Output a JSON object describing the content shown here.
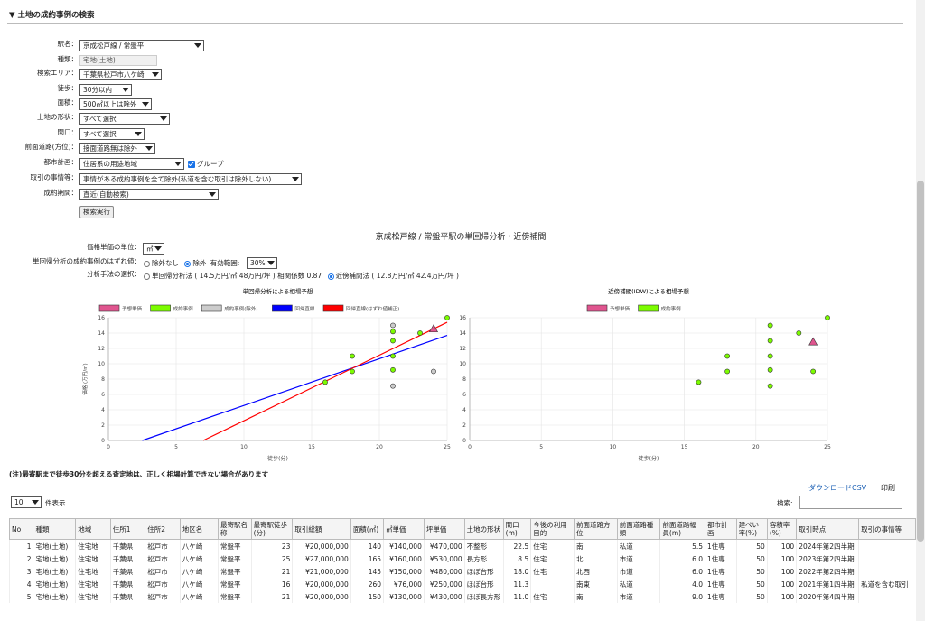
{
  "section_title": "▼ 土地の成約事例の検索",
  "form": {
    "station": {
      "label": "駅名：",
      "value": "京成松戸線 / 常盤平"
    },
    "kind": {
      "label": "種類：",
      "value": "宅地(土地)"
    },
    "area_search": {
      "label": "検索エリア：",
      "value": "千葉県松戸市八ケ崎"
    },
    "walk": {
      "label": "徒歩：",
      "value": "30分以内"
    },
    "size": {
      "label": "面積：",
      "value": "500㎡以上は除外"
    },
    "shape": {
      "label": "土地の形状：",
      "value": "すべて選択"
    },
    "frontage": {
      "label": "間口：",
      "value": "すべて選択"
    },
    "front_road": {
      "label": "前面道路(方位)：",
      "value": "接面道路無は除外"
    },
    "city_plan": {
      "label": "都市計画：",
      "value": "住居系の用途地域",
      "group_label": "グループ"
    },
    "circumstances": {
      "label": "取引の事情等：",
      "value": "事情がある成約事例を全て除外(私道を含む取引は除外しない)"
    },
    "period": {
      "label": "成約期間：",
      "value": "直近(自動検索)"
    },
    "search_button": "検索実行"
  },
  "analysis": {
    "title": "京成松戸線 / 常盤平駅の単回帰分析・近傍補間",
    "unit": {
      "label": "価格単価の単位：",
      "value": "㎡"
    },
    "outlier": {
      "label": "単回帰分析の成約事例のはずれ値：",
      "opt1": "除外なし",
      "opt2": "除外",
      "range_label": "有効範囲:",
      "range_value": "30%"
    },
    "method": {
      "label": "分析手法の選択：",
      "opt1": "単回帰分析法 ( 14.5万円/㎡ 48万円/坪 ) 相関係数 0.87",
      "opt2": "近傍補間法 ( 12.8万円/㎡ 42.4万円/坪 )"
    }
  },
  "chart_data": [
    {
      "type": "scatter",
      "title": "単回帰分析による相場予想",
      "xlabel": "徒歩(分)",
      "ylabel": "価格 (万円/㎡)",
      "xlim": [
        0,
        25
      ],
      "ylim": [
        0,
        16
      ],
      "xticks": [
        "0",
        "5",
        "10",
        "15",
        "20",
        "25"
      ],
      "yticks": [
        "0",
        "2",
        "4",
        "6",
        "8",
        "10",
        "12",
        "14",
        "16"
      ],
      "legend": [
        "予想単価",
        "成約事例",
        "成約事例(除外)",
        "回帰直線",
        "回帰直線(はずれ値補正)"
      ],
      "colors": {
        "predicted": "#e0558f",
        "included": "#7cfc00",
        "excluded": "#cccccc",
        "line_blue": "#0000ff",
        "line_red": "#ff0000"
      },
      "series": [
        {
          "name": "成約事例",
          "points": [
            [
              16,
              7.6
            ],
            [
              18,
              9
            ],
            [
              18,
              11
            ],
            [
              21,
              9.2
            ],
            [
              21,
              11
            ],
            [
              21,
              13
            ],
            [
              21,
              14.2
            ],
            [
              23,
              14
            ],
            [
              25,
              16
            ]
          ]
        },
        {
          "name": "成約事例(除外)",
          "points": [
            [
              21,
              15
            ],
            [
              21,
              7.1
            ],
            [
              24,
              9
            ]
          ]
        },
        {
          "name": "予想単価",
          "points": [
            [
              24,
              14.5
            ]
          ]
        },
        {
          "name": "回帰直線",
          "line": [
            [
              2.5,
              0
            ],
            [
              25,
              13.7
            ]
          ]
        },
        {
          "name": "回帰直線(はずれ値補正)",
          "line": [
            [
              7,
              0
            ],
            [
              25,
              15.4
            ]
          ]
        }
      ]
    },
    {
      "type": "scatter",
      "title": "近傍補間(IDW)による相場予想",
      "xlabel": "徒歩(分)",
      "ylabel": "価格 (万円/㎡)",
      "xlim": [
        0,
        25
      ],
      "ylim": [
        0,
        16
      ],
      "xticks": [
        "0",
        "5",
        "10",
        "15",
        "20",
        "25"
      ],
      "yticks": [
        "0",
        "2",
        "4",
        "6",
        "8",
        "10",
        "12",
        "14",
        "16"
      ],
      "legend": [
        "予想単価",
        "成約事例"
      ],
      "colors": {
        "predicted": "#e0558f",
        "included": "#7cfc00"
      },
      "series": [
        {
          "name": "成約事例",
          "points": [
            [
              16,
              7.6
            ],
            [
              18,
              9
            ],
            [
              18,
              11
            ],
            [
              21,
              7.1
            ],
            [
              21,
              9.2
            ],
            [
              21,
              11
            ],
            [
              21,
              13
            ],
            [
              21,
              15
            ],
            [
              23,
              14
            ],
            [
              24,
              9
            ],
            [
              25,
              16
            ]
          ]
        },
        {
          "name": "予想単価",
          "points": [
            [
              24,
              12.8
            ]
          ]
        }
      ]
    }
  ],
  "note": "(注)最寄駅まで徒歩30分を超える査定地は、正しく相場計算できない場合があります",
  "download_csv": "ダウンロードCSV",
  "print": "印刷",
  "table": {
    "page_size": "10",
    "page_size_suffix": "件表示",
    "search_label": "検索:",
    "headers": [
      "No",
      "種類",
      "地域",
      "住所1",
      "住所2",
      "地区名",
      "最寄駅名称",
      "最寄駅徒歩(分)",
      "取引総額",
      "面積(㎡)",
      "㎡単価",
      "坪単価",
      "土地の形状",
      "間口(m)",
      "今後の利用目的",
      "前面道路方位",
      "前面道路種類",
      "前面道路幅員(m)",
      "都市計画",
      "建ぺい率(%)",
      "容積率(%)",
      "取引時点",
      "取引の事情等"
    ],
    "rows": [
      [
        "1",
        "宅地(土地)",
        "住宅地",
        "千葉県",
        "松戸市",
        "八ケ崎",
        "常盤平",
        "23",
        "¥20,000,000",
        "140",
        "¥140,000",
        "¥470,000",
        "不整形",
        "22.5",
        "住宅",
        "南",
        "私道",
        "5.5",
        "1住専",
        "50",
        "100",
        "2024年第2四半期",
        ""
      ],
      [
        "2",
        "宅地(土地)",
        "住宅地",
        "千葉県",
        "松戸市",
        "八ケ崎",
        "常盤平",
        "25",
        "¥27,000,000",
        "165",
        "¥160,000",
        "¥530,000",
        "長方形",
        "8.5",
        "住宅",
        "北",
        "市道",
        "6.0",
        "1住専",
        "50",
        "100",
        "2023年第2四半期",
        ""
      ],
      [
        "3",
        "宅地(土地)",
        "住宅地",
        "千葉県",
        "松戸市",
        "八ケ崎",
        "常盤平",
        "21",
        "¥21,000,000",
        "145",
        "¥150,000",
        "¥480,000",
        "ほぼ台形",
        "18.0",
        "住宅",
        "北西",
        "市道",
        "6.0",
        "1住専",
        "50",
        "100",
        "2022年第2四半期",
        ""
      ],
      [
        "4",
        "宅地(土地)",
        "住宅地",
        "千葉県",
        "松戸市",
        "八ケ崎",
        "常盤平",
        "16",
        "¥20,000,000",
        "260",
        "¥76,000",
        "¥250,000",
        "ほぼ台形",
        "11.3",
        "",
        "南東",
        "私道",
        "4.0",
        "1住専",
        "50",
        "100",
        "2021年第1四半期",
        "私道を含む取引"
      ],
      [
        "5",
        "宅地(土地)",
        "住宅地",
        "千葉県",
        "松戸市",
        "八ケ崎",
        "常盤平",
        "21",
        "¥20,000,000",
        "150",
        "¥130,000",
        "¥430,000",
        "ほぼ長方形",
        "11.0",
        "住宅",
        "南",
        "市道",
        "9.0",
        "1住専",
        "50",
        "100",
        "2020年第4四半期",
        ""
      ]
    ]
  }
}
